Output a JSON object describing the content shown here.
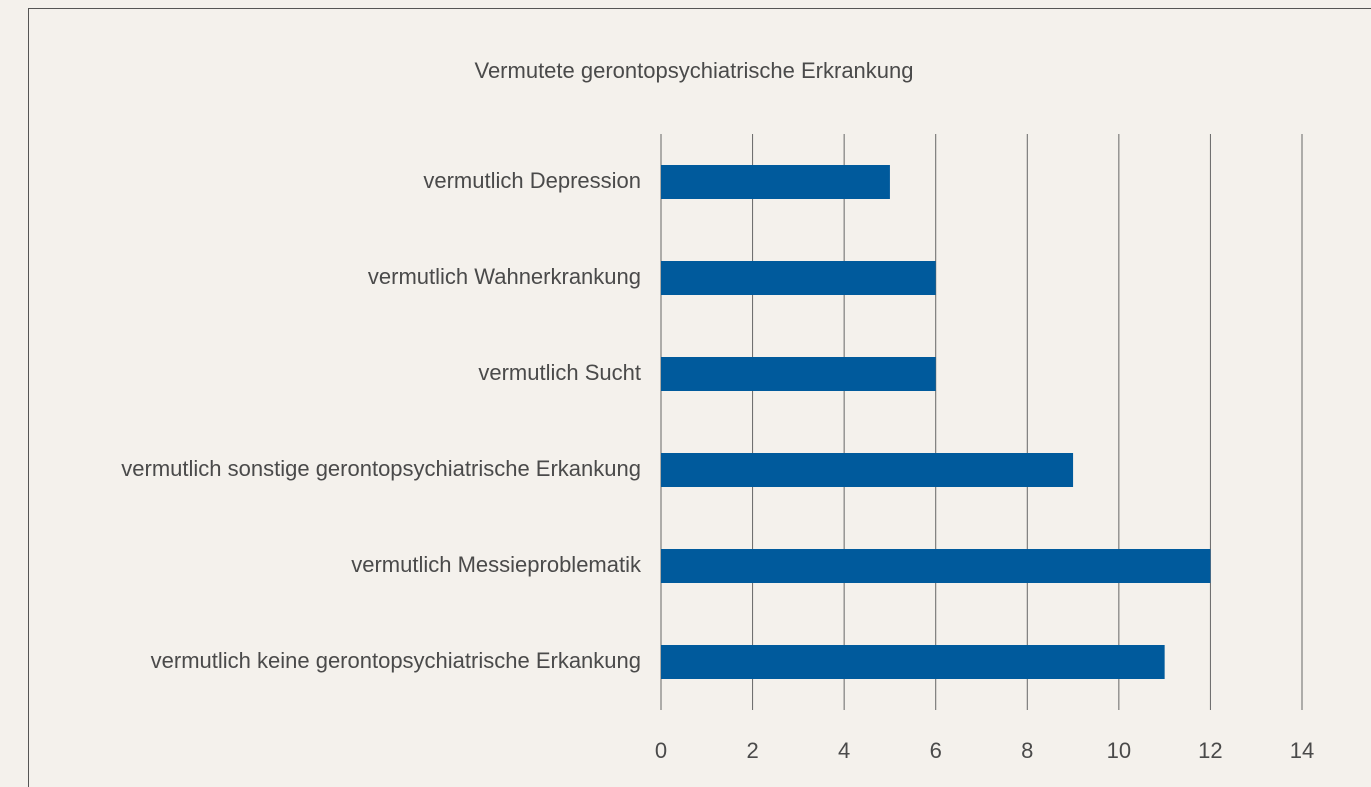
{
  "chart_data": {
    "type": "bar",
    "orientation": "horizontal",
    "title": "Vermutete gerontopsychiatrische Erkrankung",
    "categories": [
      "vermutlich Depression",
      "vermutlich Wahnerkrankung",
      "vermutlich Sucht",
      "vermutlich sonstige gerontopsychiatrische Erkankung",
      "vermutlich Messieproblematik",
      "vermutlich keine gerontopsychiatrische Erkankung"
    ],
    "values": [
      5,
      6,
      6,
      9,
      12,
      11
    ],
    "color": "#005a9c",
    "xlim": [
      0,
      14
    ],
    "xticks": [
      0,
      2,
      4,
      6,
      8,
      10,
      12,
      14
    ],
    "grid": true
  }
}
